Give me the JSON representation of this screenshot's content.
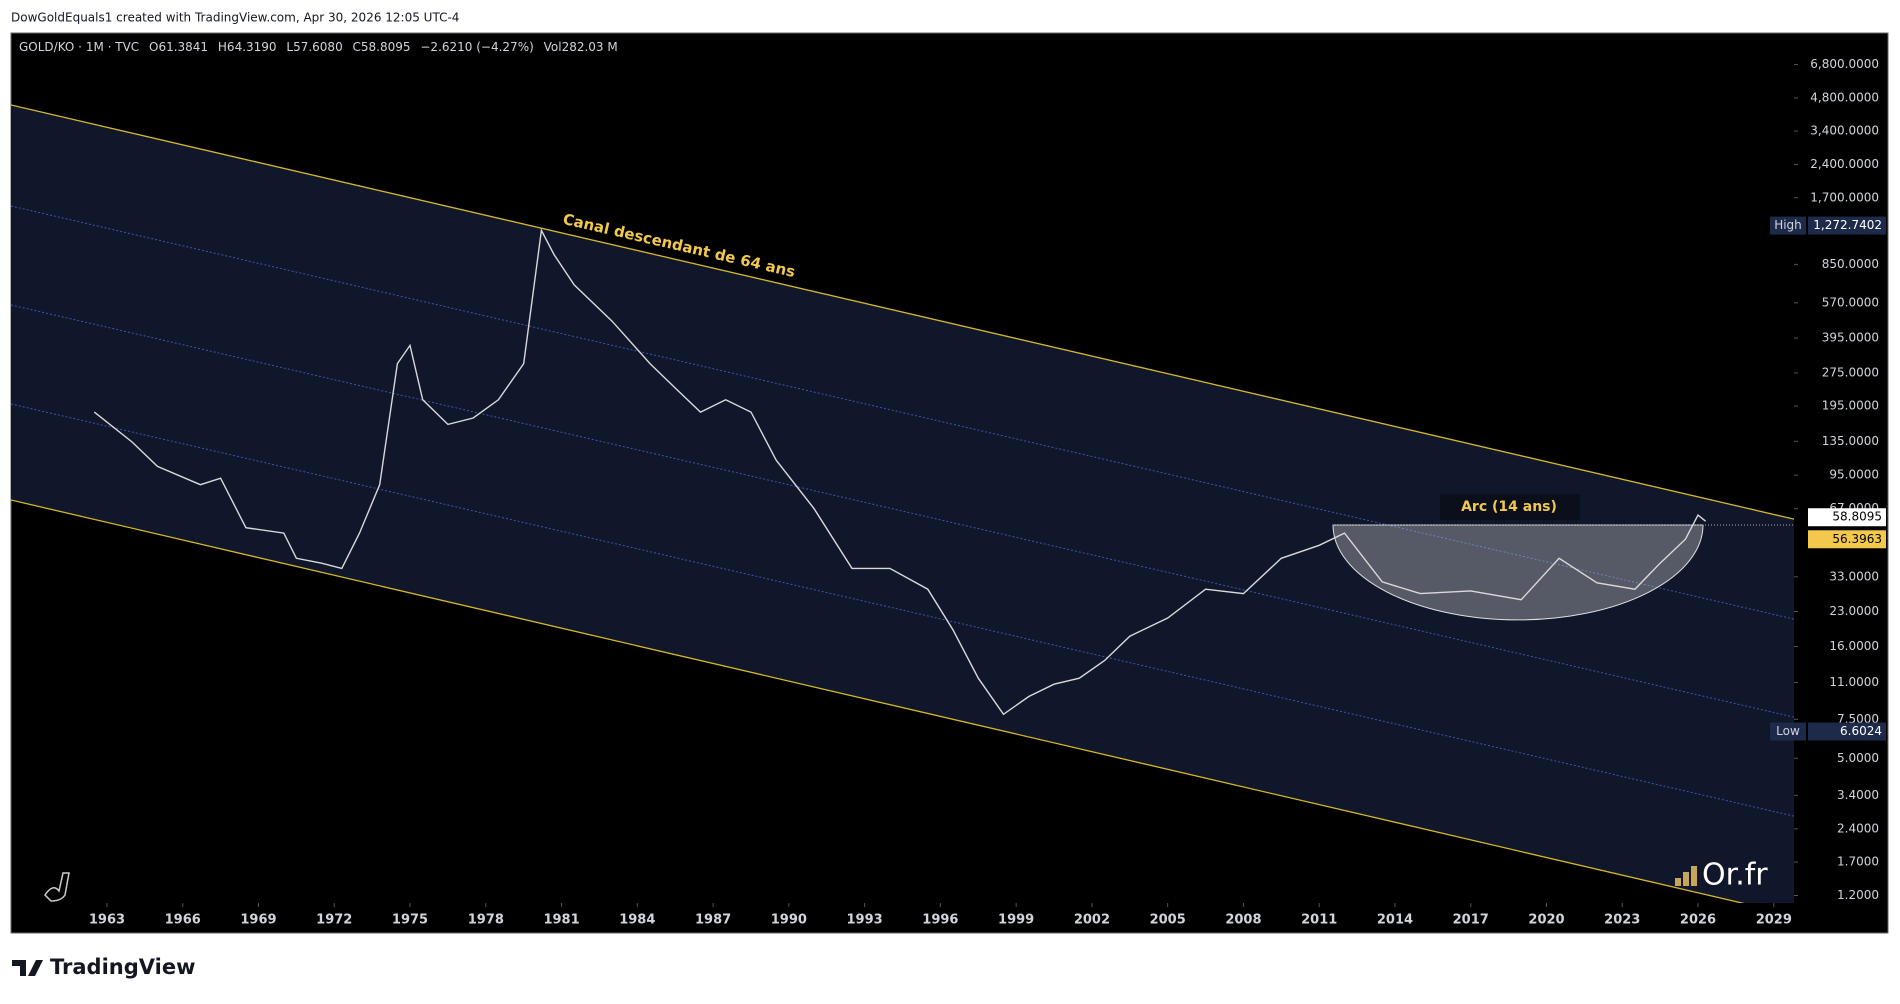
{
  "header": "DowGoldEquals1 created with TradingView.com, Apr 30, 2026 12:05 UTC-4",
  "footer": "TradingView",
  "watermark": "Or.fr",
  "legend": {
    "open": "O61.3841",
    "high": "H64.3190",
    "low": "L57.6080",
    "close": "C58.8095",
    "change": "−2.6210 (−4.27%)",
    "volume": "Vol282.03 M"
  },
  "chart_data": {
    "type": "line",
    "log_scale": true,
    "grid": false,
    "annotations": [
      "Canal descendant de 64 ans",
      "Arc (14 ans)"
    ],
    "x": [
      1962.5,
      1964,
      1965,
      1966.7,
      1967.5,
      1968.5,
      1970,
      1970.5,
      1971.5,
      1972.3,
      1973,
      1973.8,
      1974.5,
      1975,
      1975.5,
      1976.5,
      1977.5,
      1978.5,
      1979.5,
      1980.2,
      1980.7,
      1981.5,
      1983,
      1984.5,
      1985.5,
      1986.5,
      1987.5,
      1988.5,
      1989.5,
      1991,
      1992.5,
      1994,
      1995.5,
      1996.5,
      1997.5,
      1998.5,
      1999.5,
      2000.5,
      2001.5,
      2002.5,
      2003.5,
      2005,
      2006.5,
      2008,
      2009.5,
      2011,
      2012,
      2013.5,
      2015,
      2017,
      2019,
      2020.5,
      2022,
      2023.5,
      2024.5,
      2025.5,
      2026,
      2026.3
    ],
    "series": [
      {
        "name": "GOLD/KO · 1M · TVC",
        "color": "#d9d9d9",
        "values": [
          183,
          134,
          104,
          86,
          92,
          55,
          52,
          40,
          38,
          36,
          52,
          86,
          303,
          366,
          208,
          161,
          172,
          208,
          303,
          1211,
          942,
          687,
          471,
          303,
          235,
          183,
          208,
          183,
          111,
          67,
          36,
          36,
          29,
          19,
          11.5,
          7.9,
          9.5,
          10.8,
          11.5,
          13.8,
          17.8,
          21.5,
          29,
          27.7,
          40,
          45.8,
          52,
          31.3,
          27.7,
          28.5,
          26,
          40,
          31,
          29,
          38,
          48.8,
          62.7,
          58.8095
        ]
      }
    ],
    "xlim": [
      1959.2,
      2029.8
    ],
    "xticks": [
      1963,
      1966,
      1969,
      1972,
      1975,
      1978,
      1981,
      1984,
      1987,
      1990,
      1993,
      1996,
      1999,
      2002,
      2005,
      2008,
      2011,
      2014,
      2017,
      2020,
      2023,
      2026,
      2029
    ],
    "ylim": [
      1.11,
      9430
    ],
    "yticks": [
      {
        "value": 6800,
        "label": "6,800.0000"
      },
      {
        "value": 4800,
        "label": "4,800.0000"
      },
      {
        "value": 3400,
        "label": "3,400.0000"
      },
      {
        "value": 2400,
        "label": "2,400.0000"
      },
      {
        "value": 1700,
        "label": "1,700.0000"
      },
      {
        "value": 850,
        "label": "850.0000"
      },
      {
        "value": 570,
        "label": "570.0000"
      },
      {
        "value": 395,
        "label": "395.0000"
      },
      {
        "value": 275,
        "label": "275.0000"
      },
      {
        "value": 195,
        "label": "195.0000"
      },
      {
        "value": 135,
        "label": "135.0000"
      },
      {
        "value": 95,
        "label": "95.0000"
      },
      {
        "value": 67,
        "label": "67.0000"
      },
      {
        "value": 33,
        "label": "33.0000"
      },
      {
        "value": 23,
        "label": "23.0000"
      },
      {
        "value": 16,
        "label": "16.0000"
      },
      {
        "value": 11,
        "label": "11.0000"
      },
      {
        "value": 7.5,
        "label": "7.5000"
      },
      {
        "value": 5,
        "label": "5.0000"
      },
      {
        "value": 3.4,
        "label": "3.4000"
      },
      {
        "value": 2.4,
        "label": "2.4000"
      },
      {
        "value": 1.7,
        "label": "1.7000"
      },
      {
        "value": 1.2,
        "label": "1.2000"
      }
    ],
    "high_name": "High",
    "high": {
      "value": 1272.7402,
      "label": "1,272.7402"
    },
    "low_name": "Low",
    "low": 6.6024,
    "last": 58.8095,
    "reference": 56.3963
  }
}
